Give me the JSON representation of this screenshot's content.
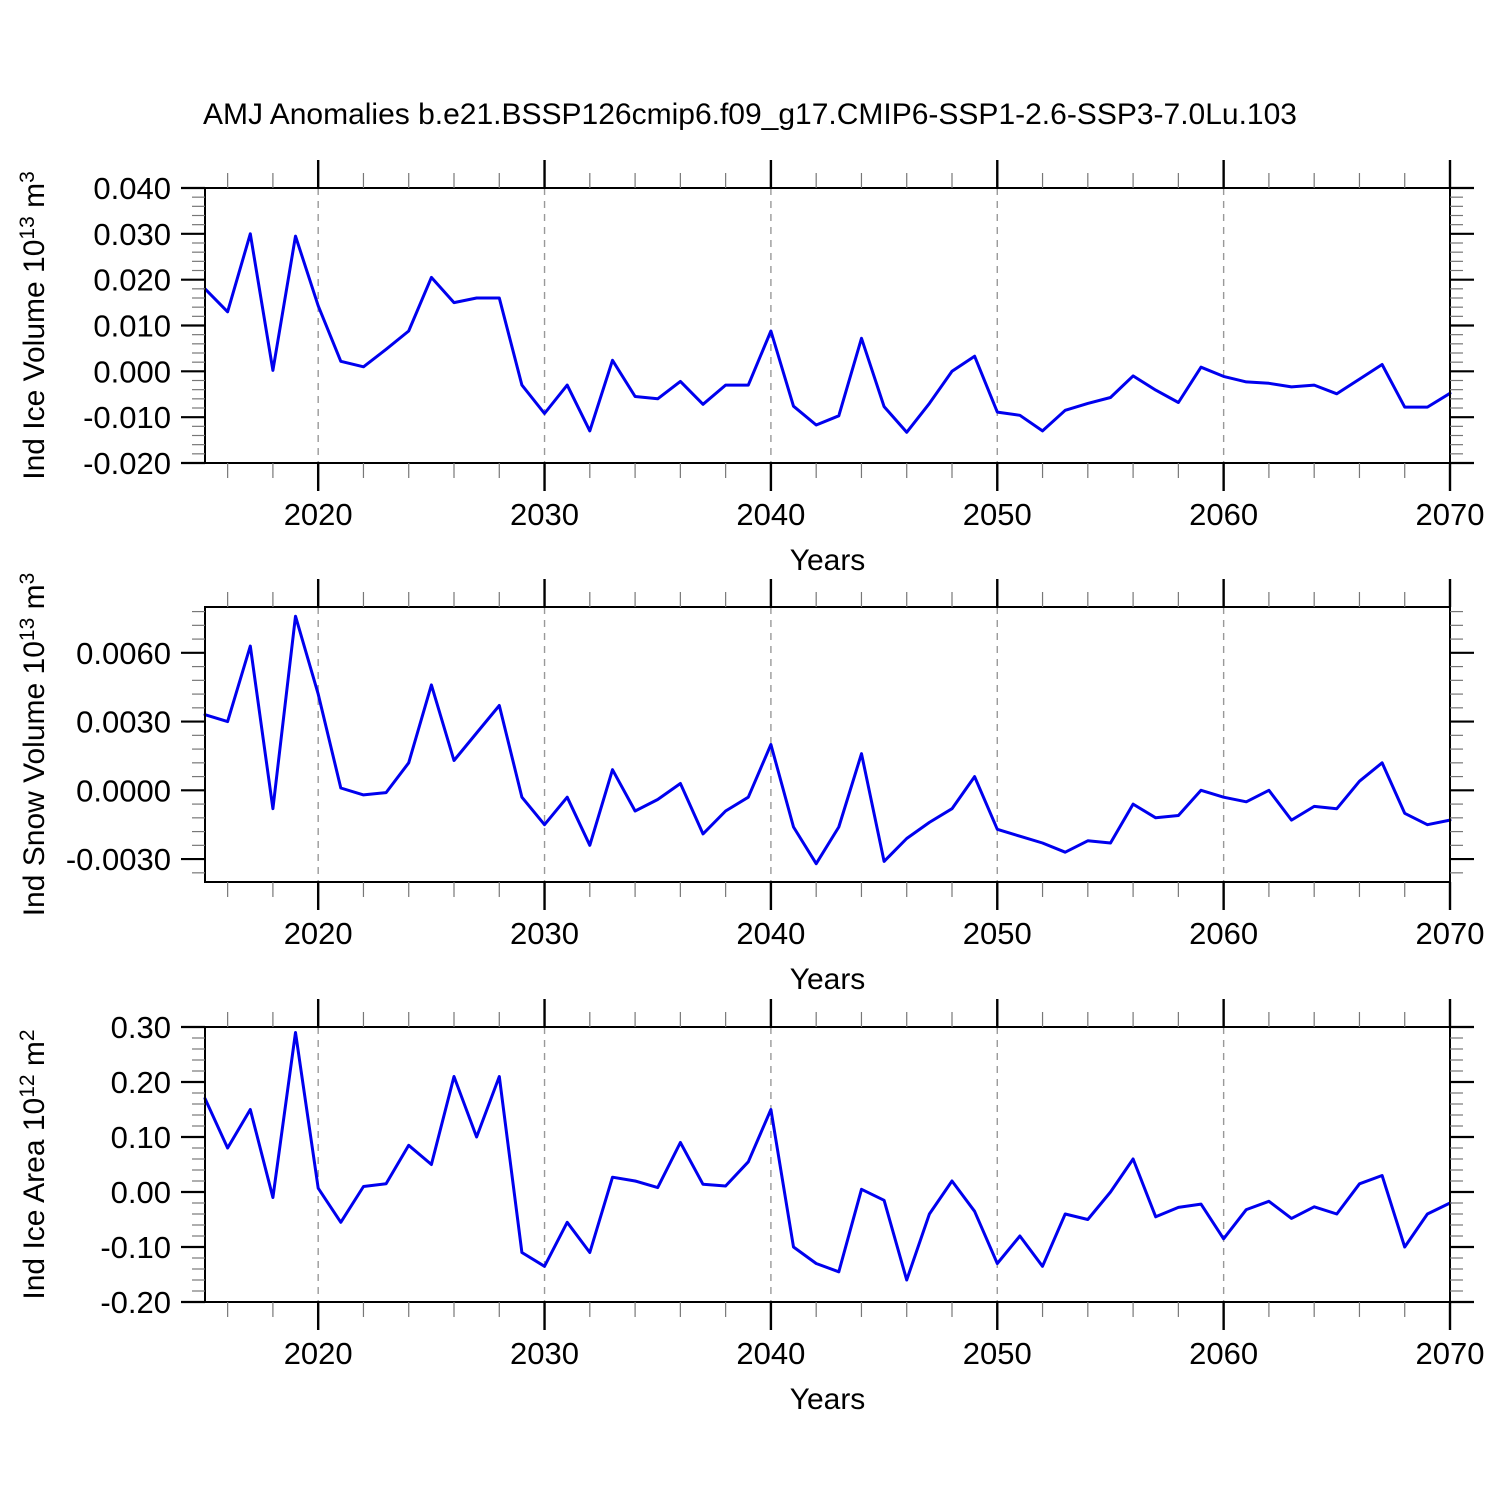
{
  "page": {
    "background": "#ffffff"
  },
  "chart_data": {
    "type": "line",
    "title": "AMJ Anomalies b.e21.BSSP126cmip6.f09_g17.CMIP6-SSP1-2.6-SSP3-7.0Lu.103",
    "xlabel": "Years",
    "xlim": [
      2015,
      2070
    ],
    "x": [
      2015,
      2016,
      2017,
      2018,
      2019,
      2020,
      2021,
      2022,
      2023,
      2024,
      2025,
      2026,
      2027,
      2028,
      2029,
      2030,
      2031,
      2032,
      2033,
      2034,
      2035,
      2036,
      2037,
      2038,
      2039,
      2040,
      2041,
      2042,
      2043,
      2044,
      2045,
      2046,
      2047,
      2048,
      2049,
      2050,
      2051,
      2052,
      2053,
      2054,
      2055,
      2056,
      2057,
      2058,
      2059,
      2060,
      2061,
      2062,
      2063,
      2064,
      2065,
      2066,
      2067,
      2068,
      2069,
      2070
    ],
    "x_major_ticks": [
      2020,
      2030,
      2040,
      2050,
      2060,
      2070
    ],
    "x_tick_labels": [
      "2020",
      "2030",
      "2040",
      "2050",
      "2060",
      "2070"
    ],
    "x_minor_tick_step": 2,
    "x_grid_years": [
      2020,
      2030,
      2040,
      2050,
      2060
    ],
    "grid_style": "vertical dashed gray at decade ticks",
    "legend": "none",
    "line_color": "#0000ee",
    "series": [
      {
        "id": "ice-volume",
        "name": "Ind Ice Volume",
        "ylabel": "Ind Ice Volume 10^13^ m^3^",
        "ylabel_plain": "Ind Ice Volume 10^13 m^3",
        "ylim": [
          -0.02,
          0.04
        ],
        "y_major_tick_step": 0.01,
        "y_minor_tick_step": 0.002,
        "y_tick_labels": [
          "0.040",
          "0.030",
          "0.020",
          "0.010",
          "0.000",
          "-0.010",
          "-0.020"
        ],
        "y_tick_decimals": 3,
        "values": [
          0.018,
          0.013,
          0.03,
          0.0002,
          0.0295,
          0.0143,
          0.0022,
          0.001,
          0.0048,
          0.0088,
          0.0205,
          0.015,
          0.016,
          0.016,
          -0.003,
          -0.0092,
          -0.003,
          -0.013,
          0.0024,
          -0.0055,
          -0.006,
          -0.0022,
          -0.0072,
          -0.003,
          -0.003,
          0.0088,
          -0.0076,
          -0.0117,
          -0.0097,
          0.0072,
          -0.0077,
          -0.0133,
          -0.007,
          0.0,
          0.0033,
          -0.0089,
          -0.0096,
          -0.013,
          -0.0085,
          -0.007,
          -0.0057,
          -0.001,
          -0.0041,
          -0.0068,
          0.0009,
          -0.0011,
          -0.0023,
          -0.0026,
          -0.0034,
          -0.003,
          -0.0049,
          -0.0017,
          0.0015,
          -0.0078,
          -0.0078,
          -0.0048
        ]
      },
      {
        "id": "snow-volume",
        "name": "Ind Snow Volume",
        "ylabel": "Ind Snow Volume 10^13^ m^3^",
        "ylabel_plain": "Ind Snow Volume 10^13 m^3",
        "ylim": [
          -0.004,
          0.008
        ],
        "y_major_tick_step": 0.003,
        "y_minor_tick_step": 0.0006,
        "y_tick_labels": [
          "0.0060",
          "0.0030",
          "0.0000",
          "-0.0030"
        ],
        "y_tick_decimals": 4,
        "values": [
          0.0033,
          0.003,
          0.0063,
          -0.0008,
          0.0076,
          0.0042,
          0.0001,
          -0.0002,
          -0.0001,
          0.0012,
          0.0046,
          0.0013,
          0.0025,
          0.0037,
          -0.0003,
          -0.0015,
          -0.0003,
          -0.0024,
          0.0009,
          -0.0009,
          -0.0004,
          0.0003,
          -0.0019,
          -0.0009,
          -0.0003,
          0.002,
          -0.0016,
          -0.0032,
          -0.0016,
          0.0016,
          -0.0031,
          -0.0021,
          -0.0014,
          -0.0008,
          0.0006,
          -0.0017,
          -0.002,
          -0.0023,
          -0.0027,
          -0.0022,
          -0.0023,
          -0.0006,
          -0.0012,
          -0.0011,
          0.0,
          -0.0003,
          -0.0005,
          0.0,
          -0.0013,
          -0.0007,
          -0.0008,
          0.0004,
          0.0012,
          -0.001,
          -0.0015,
          -0.0013
        ]
      },
      {
        "id": "ice-area",
        "name": "Ind Ice Area",
        "ylabel": "Ind Ice Area 10^12^ m^2^",
        "ylabel_plain": "Ind Ice Area 10^12 m^2",
        "ylim": [
          -0.2,
          0.3
        ],
        "y_major_tick_step": 0.1,
        "y_minor_tick_step": 0.02,
        "y_tick_labels": [
          "0.30",
          "0.20",
          "0.10",
          "0.00",
          "-0.10",
          "-0.20"
        ],
        "y_tick_decimals": 2,
        "values": [
          0.17,
          0.08,
          0.15,
          -0.01,
          0.29,
          0.007,
          -0.055,
          0.01,
          0.015,
          0.085,
          0.05,
          0.21,
          0.1,
          0.21,
          -0.11,
          -0.135,
          -0.055,
          -0.11,
          0.027,
          0.02,
          0.008,
          0.09,
          0.014,
          0.011,
          0.055,
          0.15,
          -0.1,
          -0.13,
          -0.145,
          0.005,
          -0.015,
          -0.16,
          -0.04,
          0.02,
          -0.035,
          -0.13,
          -0.08,
          -0.135,
          -0.04,
          -0.05,
          0.0,
          0.06,
          -0.045,
          -0.028,
          -0.022,
          -0.085,
          -0.032,
          -0.017,
          -0.048,
          -0.027,
          -0.04,
          0.015,
          0.03,
          -0.1,
          -0.04,
          -0.02
        ]
      }
    ]
  }
}
